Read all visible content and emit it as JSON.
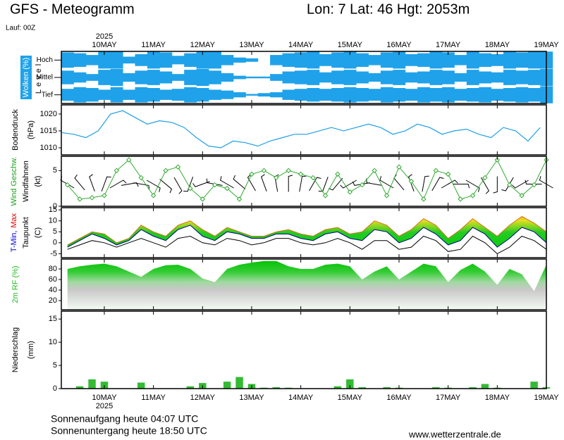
{
  "title": "GFS - Meteogramm",
  "location": "Lon: 7 Lat: 46 Hgt: 2053m",
  "run": "Lauf: 00Z",
  "year": "2025",
  "sunrise": "Sonnenaufgang heute 04:07 UTC",
  "sunset": "Sonnenuntergang heute 18:50 UTC",
  "source": "www.wetterzentrale.de",
  "chart_data": [
    {
      "type": "cloud",
      "ylabel": [
        [
          {
            "text": "Wolken (%)",
            "color": "#ffffff"
          }
        ],
        [
          {
            "text": "Level",
            "color": "#000000"
          }
        ]
      ],
      "categories": [
        "Hoch",
        "Mittel",
        "Tief"
      ],
      "x": [
        0,
        6,
        12,
        18,
        24,
        30,
        36,
        42,
        48,
        54,
        60,
        66,
        72,
        78,
        84,
        90,
        96,
        102,
        108,
        114,
        120,
        126,
        132,
        138,
        144,
        150,
        156,
        162,
        168,
        174,
        180,
        186,
        192,
        198,
        204,
        210,
        216,
        222,
        228,
        234
      ],
      "xlim": [
        0,
        237
      ],
      "xticks": [
        {
          "value": 21,
          "label": "10MAY"
        },
        {
          "value": 45,
          "label": "11MAY"
        },
        {
          "value": 69,
          "label": "12MAY"
        },
        {
          "value": 93,
          "label": "13MAY"
        },
        {
          "value": 117,
          "label": "14MAY"
        },
        {
          "value": 141,
          "label": "15MAY"
        },
        {
          "value": 165,
          "label": "16MAY"
        },
        {
          "value": 189,
          "label": "17MAY"
        },
        {
          "value": 213,
          "label": "18MAY"
        },
        {
          "value": 237,
          "label": "19MAY"
        }
      ],
      "series": [
        {
          "color": "#1fa2ea",
          "values": [
            90,
            80,
            60,
            100,
            100,
            40,
            70,
            100,
            90,
            50,
            80,
            100,
            100,
            60,
            30,
            20,
            0,
            60,
            80,
            90,
            100,
            70,
            90,
            100,
            80,
            60,
            90,
            100,
            70,
            80,
            100,
            90,
            60,
            100,
            80,
            70,
            100,
            90,
            100,
            100
          ]
        },
        {
          "color": "#1fa2ea",
          "values": [
            80,
            60,
            40,
            90,
            100,
            50,
            80,
            90,
            70,
            40,
            90,
            100,
            80,
            50,
            20,
            10,
            10,
            40,
            70,
            80,
            90,
            60,
            80,
            90,
            70,
            50,
            80,
            90,
            60,
            70,
            90,
            80,
            50,
            90,
            70,
            60,
            90,
            80,
            90,
            100
          ]
        },
        {
          "color": "#1fa2ea",
          "values": [
            70,
            90,
            80,
            60,
            90,
            60,
            90,
            80,
            60,
            70,
            90,
            80,
            60,
            50,
            30,
            10,
            20,
            30,
            60,
            70,
            80,
            70,
            80,
            90,
            80,
            70,
            90,
            80,
            70,
            90,
            80,
            90,
            70,
            80,
            90,
            70,
            80,
            90,
            80,
            100
          ]
        }
      ]
    },
    {
      "type": "line",
      "ylabel": [
        [
          {
            "text": "Bodendruck",
            "color": "#000000"
          }
        ],
        [
          {
            "text": "(hPa)",
            "color": "#000000"
          }
        ]
      ],
      "x": [
        0,
        6,
        12,
        18,
        24,
        30,
        36,
        42,
        48,
        54,
        60,
        66,
        72,
        78,
        84,
        90,
        96,
        102,
        108,
        114,
        120,
        126,
        132,
        138,
        144,
        150,
        156,
        162,
        168,
        174,
        180,
        186,
        192,
        198,
        204,
        210,
        216,
        222,
        228,
        234
      ],
      "xlim": [
        0,
        237
      ],
      "ylim": [
        1007.9,
        1022.7
      ],
      "yticks": [
        1010,
        1015,
        1020
      ],
      "series": [
        {
          "color": "#1e9fe6",
          "values": [
            1014.5,
            1014,
            1013,
            1015,
            1020,
            1021,
            1019,
            1017,
            1018,
            1017.5,
            1016,
            1013,
            1010.5,
            1010,
            1012,
            1011.5,
            1010.5,
            1012,
            1013,
            1014,
            1014,
            1015,
            1016,
            1015,
            1016,
            1017,
            1016,
            1014,
            1015,
            1017,
            1016,
            1014,
            1015,
            1015.5,
            1014,
            1013,
            1016,
            1015,
            1012,
            1016
          ]
        }
      ]
    },
    {
      "type": "wind",
      "ylabel": [
        [
          {
            "text": "Wind Geschw.",
            "color": "#22a022"
          }
        ],
        [
          {
            "text": "Windfahnen",
            "color": "#000000"
          }
        ],
        [
          {
            "text": "(kt)",
            "color": "#000000"
          }
        ]
      ],
      "x": [
        0,
        6,
        12,
        18,
        24,
        30,
        36,
        42,
        48,
        54,
        60,
        66,
        72,
        78,
        84,
        90,
        96,
        102,
        108,
        114,
        120,
        126,
        132,
        138,
        144,
        150,
        156,
        162,
        168,
        174,
        180,
        186,
        192,
        198,
        204,
        210,
        216,
        222,
        228,
        234
      ],
      "xlim": [
        0,
        237
      ],
      "ylim": [
        0,
        7
      ],
      "yticks": [
        0,
        5
      ],
      "series": [
        {
          "color": "#33aa33",
          "values": [
            3,
            1,
            1.2,
            1.5,
            5,
            6.5,
            4,
            1.5,
            5,
            5.5,
            2.5,
            1,
            3,
            2.5,
            1,
            4.5,
            5,
            4,
            5,
            4.5,
            4,
            1.5,
            4.5,
            2,
            3,
            5,
            1.5,
            5.5,
            3.5,
            1,
            5,
            4.5,
            1,
            1.5,
            4,
            6.5,
            3,
            1.5,
            3,
            6.5
          ]
        },
        {
          "color": "#000000",
          "values": [
            300,
            320,
            340,
            20,
            60,
            80,
            100,
            120,
            130,
            150,
            200,
            250,
            280,
            300,
            310,
            330,
            340,
            350,
            0,
            10,
            30,
            200,
            220,
            240,
            260,
            280,
            300,
            320,
            340,
            10,
            30,
            60,
            90,
            120,
            150,
            180,
            210,
            240,
            270,
            300
          ]
        }
      ]
    },
    {
      "type": "temperature",
      "ylabel": [
        [
          {
            "text": "T-Min,",
            "color": "#0000cc"
          },
          {
            "text": "Max",
            "color": "#dd0000"
          }
        ],
        [
          {
            "text": "Taupunkt",
            "color": "#000000"
          }
        ],
        [
          {
            "text": "(C)",
            "color": "#000000"
          }
        ]
      ],
      "x": [
        0,
        6,
        12,
        18,
        24,
        30,
        36,
        42,
        48,
        54,
        60,
        66,
        72,
        78,
        84,
        90,
        96,
        102,
        108,
        114,
        120,
        126,
        132,
        138,
        144,
        150,
        156,
        162,
        168,
        174,
        180,
        186,
        192,
        198,
        204,
        210,
        216,
        222,
        228,
        234
      ],
      "xlim": [
        0,
        237
      ],
      "ylim": [
        -6.8,
        16
      ],
      "yticks": [
        15,
        10,
        5,
        0,
        -5
      ],
      "series": [
        {
          "color": "#000088",
          "values": [
            -2,
            1,
            4,
            2,
            -1,
            1,
            6,
            3,
            1,
            6,
            8,
            3,
            1,
            5,
            4,
            2,
            2,
            4,
            4,
            2,
            1,
            4,
            5,
            2,
            1,
            6,
            5,
            0,
            2,
            7,
            4,
            -1,
            1,
            7,
            4,
            -2,
            2,
            7,
            5,
            0
          ]
        },
        {
          "color": "#e07020",
          "values": [
            -1,
            2,
            5,
            4,
            0,
            2,
            8,
            5,
            3,
            8,
            10,
            6,
            3,
            7,
            5,
            3,
            3,
            5,
            6,
            4,
            3,
            6,
            7,
            4,
            5,
            10,
            8,
            3,
            6,
            11,
            8,
            2,
            6,
            11,
            7,
            3,
            8,
            12,
            9,
            5
          ]
        },
        {
          "color": "#000000",
          "values": [
            -3,
            -1,
            1,
            0,
            -2,
            0,
            2,
            0,
            -2,
            2,
            3,
            0,
            -1,
            2,
            1,
            -1,
            0,
            2,
            2,
            0,
            -1,
            0,
            2,
            0,
            -3,
            1,
            1,
            -3,
            -2,
            3,
            1,
            -4,
            -3,
            3,
            0,
            -5,
            -2,
            3,
            1,
            -3
          ]
        }
      ]
    },
    {
      "type": "area",
      "ylabel": [
        [
          {
            "text": "2m RF (%)",
            "color": "#22bb22"
          }
        ]
      ],
      "x": [
        0,
        6,
        12,
        18,
        24,
        30,
        36,
        42,
        48,
        54,
        60,
        66,
        72,
        78,
        84,
        90,
        96,
        102,
        108,
        114,
        120,
        126,
        132,
        138,
        144,
        150,
        156,
        162,
        168,
        174,
        180,
        186,
        192,
        198,
        204,
        210,
        216,
        222,
        228,
        234
      ],
      "xlim": [
        0,
        237
      ],
      "ylim": [
        2.7,
        98.7
      ],
      "yticks": [
        80,
        60,
        40,
        20
      ],
      "series": [
        {
          "color": "#00c000",
          "values": [
            80,
            85,
            88,
            90,
            85,
            75,
            65,
            80,
            87,
            88,
            80,
            62,
            55,
            80,
            88,
            92,
            95,
            95,
            85,
            80,
            80,
            88,
            90,
            85,
            60,
            75,
            85,
            60,
            75,
            90,
            85,
            55,
            78,
            90,
            75,
            50,
            80,
            70,
            38,
            88
          ]
        }
      ]
    },
    {
      "type": "bar",
      "ylabel": [
        [
          {
            "text": "Niederschlag",
            "color": "#000000"
          }
        ],
        [
          {
            "text": "(mm)",
            "color": "#000000"
          }
        ]
      ],
      "x": [
        0,
        6,
        12,
        18,
        24,
        30,
        36,
        42,
        48,
        54,
        60,
        66,
        72,
        78,
        84,
        90,
        96,
        102,
        108,
        114,
        120,
        126,
        132,
        138,
        144,
        150,
        156,
        162,
        168,
        174,
        180,
        186,
        192,
        198,
        204,
        210,
        216,
        222,
        228,
        234
      ],
      "xlim": [
        0,
        237
      ],
      "ylim": [
        0,
        16.7
      ],
      "yticks": [
        15,
        10,
        5,
        0
      ],
      "xticks": [
        {
          "value": 21,
          "label": "10MAY"
        },
        {
          "value": 45,
          "label": "11MAY"
        },
        {
          "value": 69,
          "label": "12MAY"
        },
        {
          "value": 93,
          "label": "13MAY"
        },
        {
          "value": 117,
          "label": "14MAY"
        },
        {
          "value": 141,
          "label": "15MAY"
        },
        {
          "value": 165,
          "label": "16MAY"
        },
        {
          "value": 189,
          "label": "17MAY"
        },
        {
          "value": 213,
          "label": "18MAY"
        },
        {
          "value": 237,
          "label": "19MAY"
        }
      ],
      "series": [
        {
          "color": "#33bb33",
          "values": [
            0,
            0.5,
            2,
            1.5,
            0,
            0,
            1.3,
            0,
            0,
            0,
            0.5,
            1.2,
            0,
            1.5,
            2.5,
            1,
            0.2,
            0.3,
            0.2,
            0,
            0,
            0,
            0.5,
            2,
            0.3,
            0,
            0.3,
            0.2,
            0,
            0,
            0.3,
            0.2,
            0,
            0.3,
            1,
            0.2,
            0,
            0,
            1.5,
            0.3
          ]
        }
      ]
    }
  ]
}
